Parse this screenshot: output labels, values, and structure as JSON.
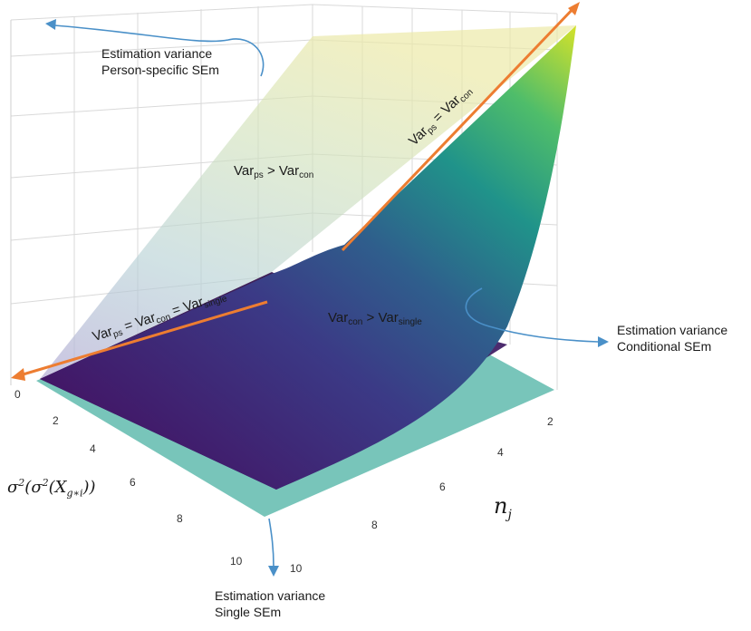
{
  "annotations": {
    "person_specific": [
      "Estimation variance",
      "Person-specific SEm"
    ],
    "conditional": [
      "Estimation variance",
      "Conditional SEm"
    ],
    "single": [
      "Estimation variance",
      "Single SEm"
    ]
  },
  "regions": {
    "ps_gt_con": {
      "a": "Var",
      "a_sub": "ps",
      "op": " > ",
      "b": "Var",
      "b_sub": "con"
    },
    "con_gt_single": {
      "a": "Var",
      "a_sub": "con",
      "op": " > ",
      "b": "Var",
      "b_sub": "single"
    },
    "ps_eq_con": {
      "a": "Var",
      "a_sub": "ps",
      "op": " = ",
      "b": "Var",
      "b_sub": "con"
    },
    "all_equal": {
      "a": "Var",
      "a_sub": "ps",
      "op1": " = ",
      "b": "Var",
      "b_sub": "con",
      "op2": " = ",
      "c": "Var",
      "c_sub": "single"
    }
  },
  "axes": {
    "left_title": "σ²(σ²(X_{g*i}))",
    "left_ticks": [
      "0",
      "2",
      "4",
      "6",
      "8",
      "10"
    ],
    "right_title": "n_j",
    "right_ticks": [
      "2",
      "4",
      "6",
      "8",
      "10"
    ]
  },
  "colors": {
    "arrow": "#ed7d31",
    "pointer": "#4a90c8",
    "single_plane": "#6dc0b4",
    "surface_low": "#4b0f6b",
    "surface_high": "#d4e22a"
  }
}
